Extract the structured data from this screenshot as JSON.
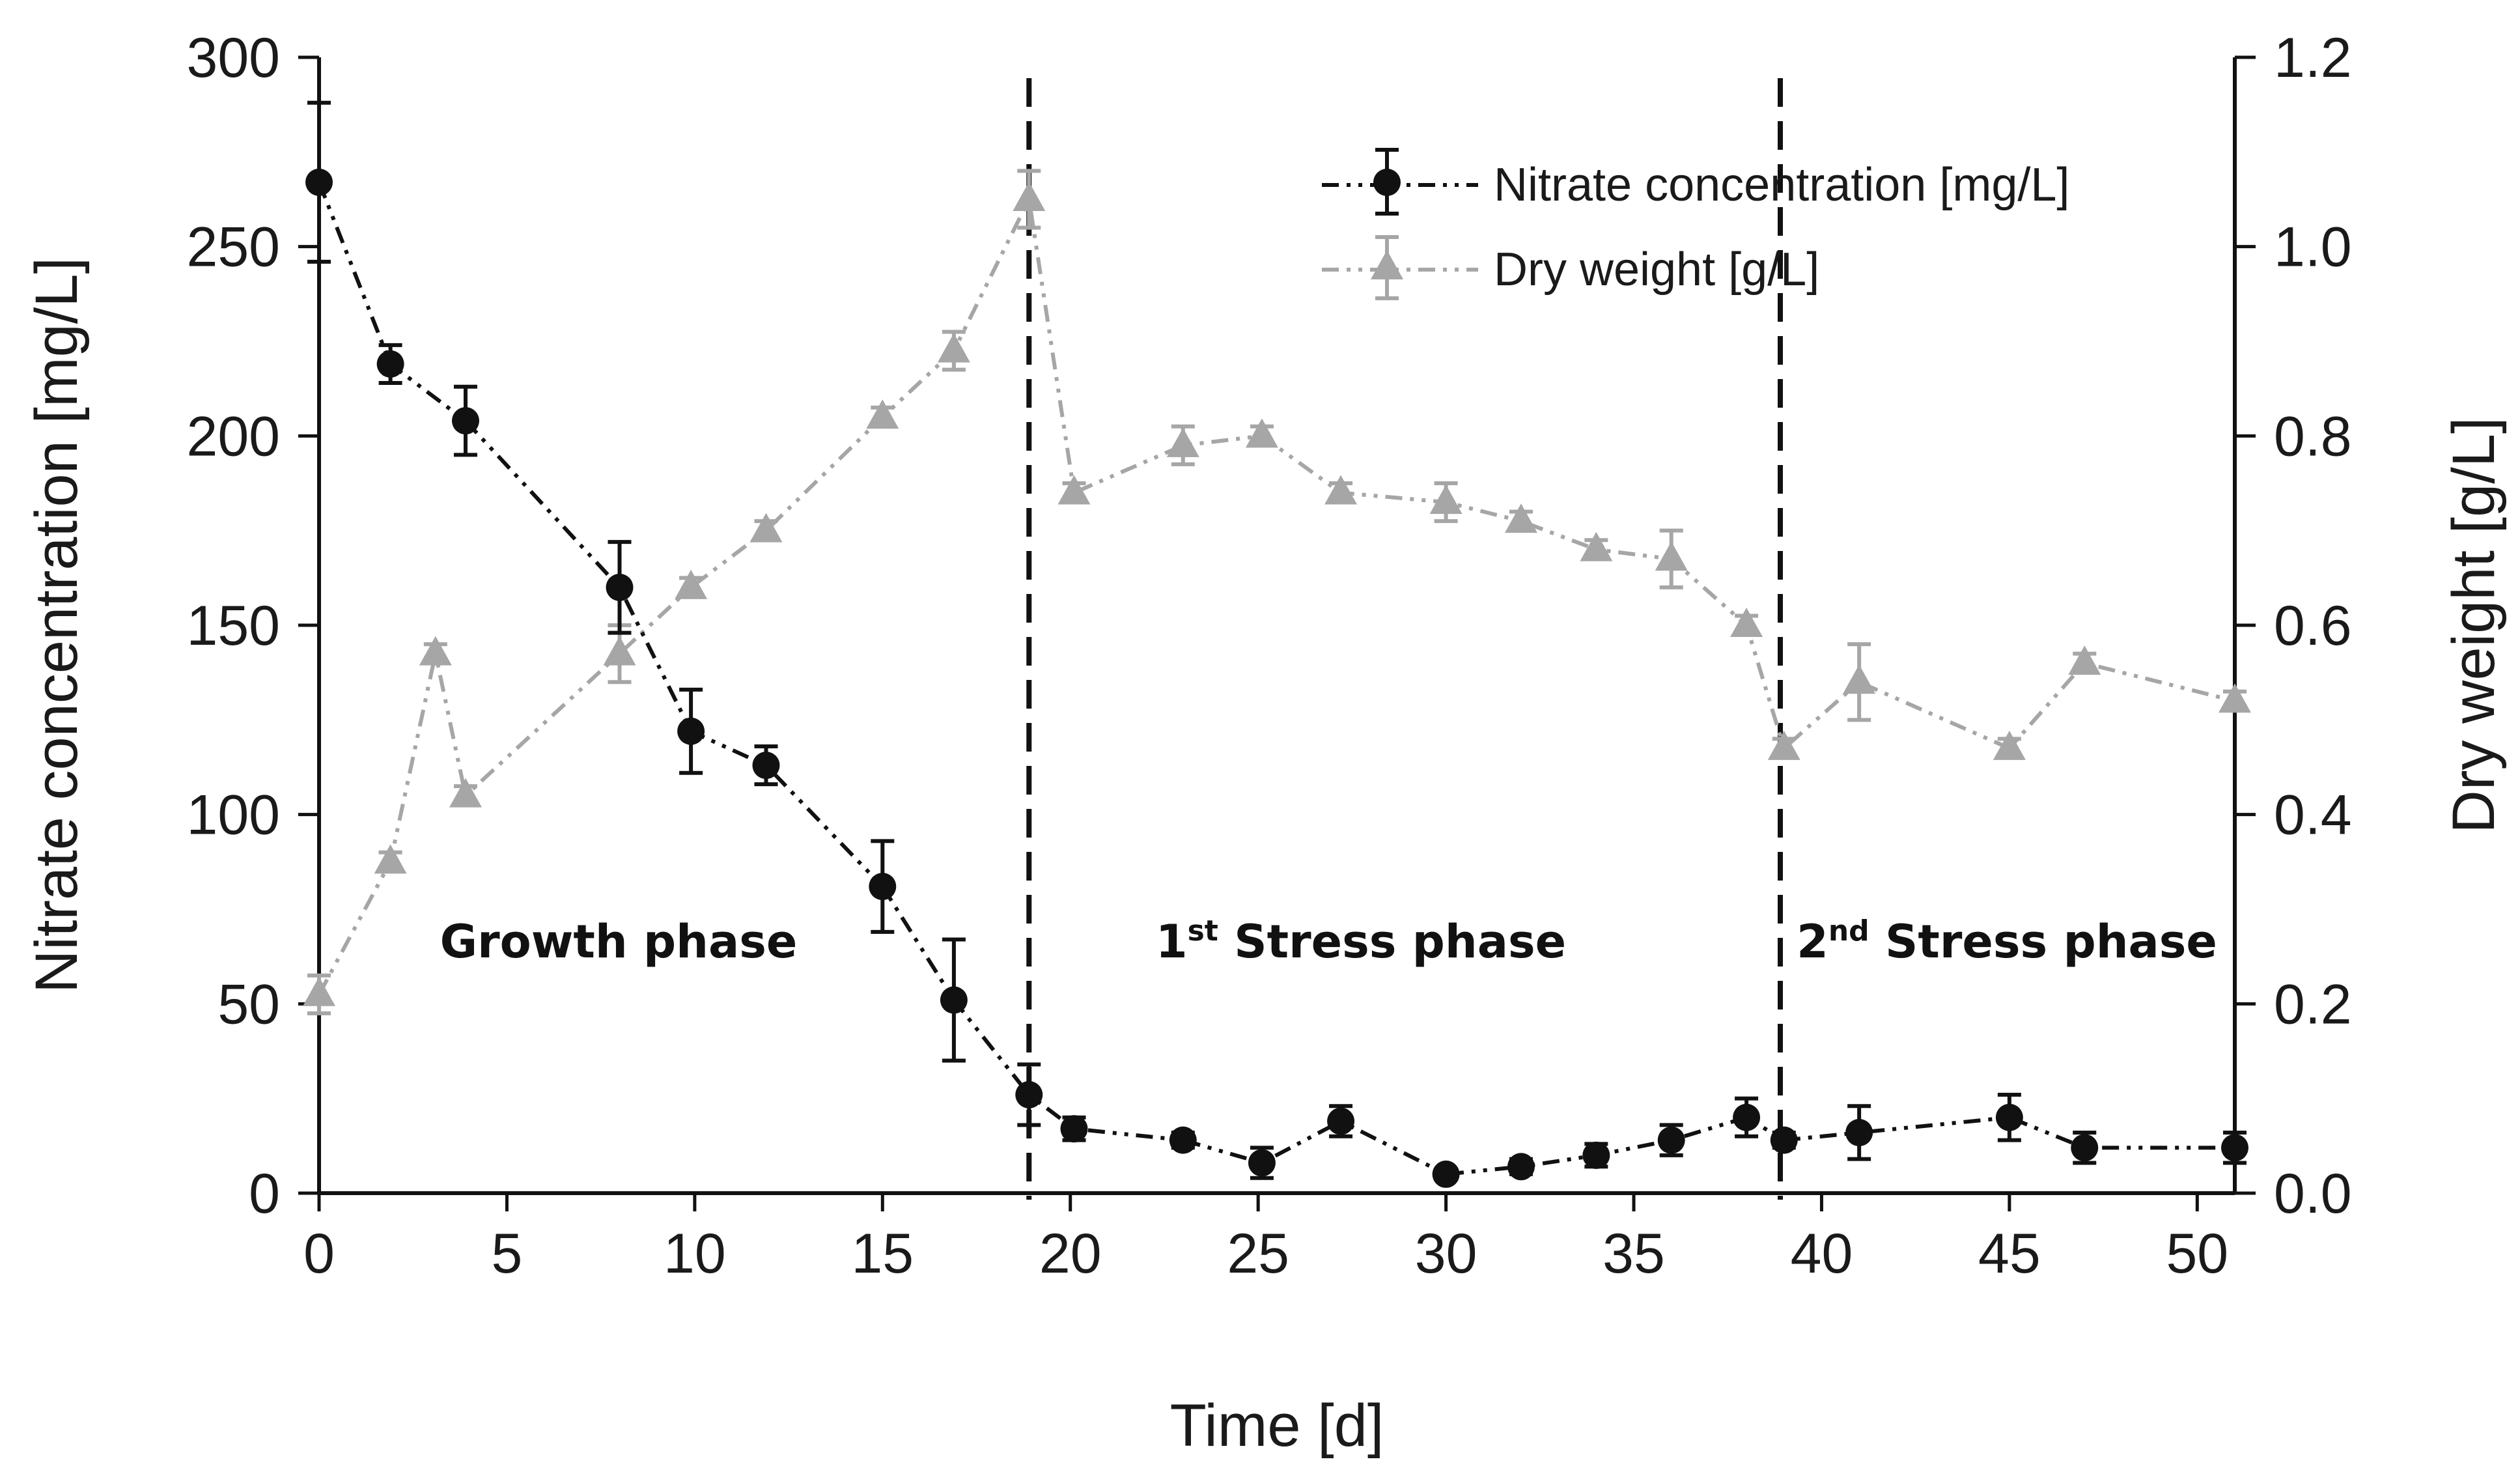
{
  "chart_data": {
    "type": "line",
    "title": "",
    "xlabel": "Time [d]",
    "ylabel_left": "Nitrate concentration [mg/L]",
    "ylabel_right": "Dry weight [g/L]",
    "xlim": [
      0,
      51
    ],
    "ylim_left": [
      0,
      300
    ],
    "ylim_right": [
      0.0,
      1.2
    ],
    "x_ticks": [
      "0",
      "5",
      "10",
      "15",
      "20",
      "25",
      "30",
      "35",
      "40",
      "45",
      "50"
    ],
    "y_left_ticks": [
      "0",
      "50",
      "100",
      "150",
      "200",
      "250",
      "300"
    ],
    "y_right_ticks": [
      "0.0",
      "0.2",
      "0.4",
      "0.6",
      "0.8",
      "1.0",
      "1.2"
    ],
    "grid": false,
    "legend_position": "top-right",
    "series": [
      {
        "name": "Nitrate concentration [mg/L]",
        "axis": "left",
        "color": "#111111",
        "marker": "circle",
        "line_style": "dash-dot-dot",
        "x": [
          0,
          1.9,
          3.9,
          8,
          9.9,
          11.9,
          15,
          16.9,
          18.9,
          20.1,
          23,
          25.1,
          27.2,
          30,
          32,
          34,
          36,
          38,
          39,
          41,
          45,
          47,
          51
        ],
        "values": [
          267,
          219,
          204,
          160,
          122,
          113,
          81,
          51,
          26,
          17,
          14,
          8,
          19,
          5,
          7,
          10,
          14,
          20,
          14,
          16,
          20,
          12,
          12
        ],
        "errors": [
          21,
          5,
          9,
          12,
          11,
          5,
          12,
          16,
          8,
          3,
          2,
          4,
          4,
          1,
          2,
          3,
          4,
          5,
          2,
          7,
          6,
          4,
          4
        ]
      },
      {
        "name": "Dry weight [g/L]",
        "axis": "right",
        "color": "#a6a6a6",
        "marker": "triangle",
        "line_style": "dash-dot-dot",
        "x": [
          0,
          1.9,
          3.1,
          3.9,
          8,
          9.9,
          11.9,
          15,
          16.9,
          18.9,
          20.1,
          23,
          25.1,
          27.2,
          30,
          32,
          34,
          36,
          38,
          39,
          41,
          45,
          47,
          51
        ],
        "values": [
          0.21,
          0.35,
          0.57,
          0.42,
          0.57,
          0.64,
          0.7,
          0.82,
          0.89,
          1.05,
          0.74,
          0.79,
          0.8,
          0.74,
          0.73,
          0.71,
          0.68,
          0.67,
          0.6,
          0.47,
          0.54,
          0.47,
          0.56,
          0.52
        ],
        "errors": [
          0.02,
          0.01,
          0.01,
          0.01,
          0.03,
          0.01,
          0.01,
          0.01,
          0.02,
          0.03,
          0.01,
          0.02,
          0.01,
          0.01,
          0.02,
          0.01,
          0.01,
          0.03,
          0.01,
          0.01,
          0.04,
          0.01,
          0.01,
          0.01
        ]
      }
    ],
    "phase_dividers_x": [
      18.9,
      38.9
    ],
    "phases": [
      {
        "pre": "",
        "sup": "",
        "post": "Growth phase"
      },
      {
        "pre": "1",
        "sup": "st",
        "post": " Stress phase"
      },
      {
        "pre": "2",
        "sup": "nd",
        "post": " Stress phase"
      }
    ]
  }
}
